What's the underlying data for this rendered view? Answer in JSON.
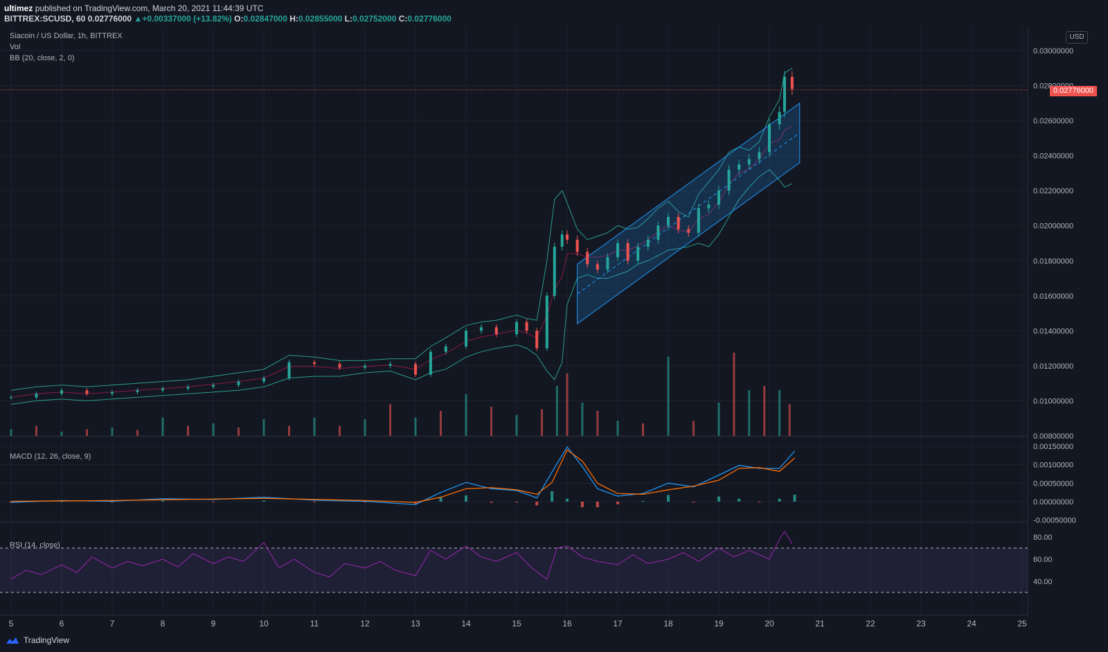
{
  "header": {
    "publisher": "ultimez",
    "published_text": "published on TradingView.com, March 20, 2021 11:44:39 UTC",
    "symbol": "BITTREX:SCUSD, 60",
    "last": "0.02776000",
    "change_arrow": "▲",
    "change": "+0.00337000 (+13.82%)",
    "o_label": "O:",
    "o": "0.02847000",
    "h_label": "H:",
    "h": "0.02855000",
    "l_label": "L:",
    "l": "0.02752000",
    "c_label": "C:",
    "c": "0.02776000"
  },
  "legend": {
    "title": "Siacoin / US Dollar, 1h, BITTREX",
    "vol": "Vol",
    "bb": "BB (20, close, 2, 0)",
    "macd": "MACD (12, 26, close, 9)",
    "rsi": "RSI (14, close)"
  },
  "currency_badge": "USD",
  "last_price_tag": "0.02776000",
  "footer": {
    "brand": "TradingView"
  },
  "colors": {
    "up": "#26a69a",
    "down": "#ef5350",
    "macd": "#2196f3",
    "signal": "#ff6d00",
    "rsi": "#9c27b0",
    "channel": "#2196f3",
    "bb": "#2a9d8f",
    "bg": "#131722"
  },
  "chart_data": [
    {
      "type": "candlestick",
      "title": "Siacoin / US Dollar, 1h, BITTREX",
      "x_ticks": [
        "5",
        "6",
        "7",
        "8",
        "9",
        "10",
        "11",
        "12",
        "13",
        "14",
        "15",
        "16",
        "17",
        "18",
        "19",
        "20",
        "21",
        "22",
        "23",
        "24",
        "25"
      ],
      "y_ticks": [
        "0.03000000",
        "0.02800000",
        "0.02600000",
        "0.02400000",
        "0.02200000",
        "0.02000000",
        "0.01800000",
        "0.01600000",
        "0.01400000",
        "0.01200000",
        "0.01000000",
        "0.00800000"
      ],
      "ylim": [
        0.008,
        0.03
      ],
      "x": [
        5.0,
        5.5,
        6.0,
        6.5,
        7.0,
        7.5,
        8.0,
        8.5,
        9.0,
        9.5,
        10.0,
        10.5,
        11.0,
        11.5,
        12.0,
        12.5,
        13.0,
        13.3,
        13.6,
        14.0,
        14.3,
        14.6,
        15.0,
        15.2,
        15.4,
        15.6,
        15.75,
        15.9,
        16.0,
        16.2,
        16.4,
        16.6,
        16.8,
        17.0,
        17.2,
        17.4,
        17.6,
        17.8,
        18.0,
        18.2,
        18.4,
        18.6,
        18.8,
        19.0,
        19.2,
        19.4,
        19.6,
        19.8,
        20.0,
        20.2,
        20.3,
        20.45
      ],
      "close": [
        0.0102,
        0.0104,
        0.0106,
        0.0104,
        0.0105,
        0.0106,
        0.0107,
        0.0108,
        0.0109,
        0.0111,
        0.0113,
        0.0122,
        0.0121,
        0.0119,
        0.012,
        0.0121,
        0.0115,
        0.0128,
        0.0131,
        0.014,
        0.0142,
        0.0138,
        0.0145,
        0.014,
        0.013,
        0.016,
        0.0188,
        0.0195,
        0.0192,
        0.0185,
        0.0178,
        0.0175,
        0.0182,
        0.019,
        0.018,
        0.0188,
        0.0192,
        0.02,
        0.0205,
        0.0198,
        0.0196,
        0.021,
        0.0212,
        0.022,
        0.0232,
        0.0235,
        0.0238,
        0.0242,
        0.0258,
        0.0265,
        0.0285,
        0.0278
      ],
      "bb_upper": [
        0.0106,
        0.0108,
        0.0109,
        0.0108,
        0.0109,
        0.011,
        0.0111,
        0.0112,
        0.0114,
        0.0116,
        0.0118,
        0.0126,
        0.0125,
        0.0123,
        0.0123,
        0.0124,
        0.0124,
        0.0131,
        0.0136,
        0.0143,
        0.0145,
        0.0146,
        0.0149,
        0.0147,
        0.0146,
        0.018,
        0.0215,
        0.022,
        0.0213,
        0.0198,
        0.0192,
        0.0194,
        0.0196,
        0.02,
        0.0198,
        0.0199,
        0.0204,
        0.021,
        0.0214,
        0.0208,
        0.0205,
        0.0218,
        0.0225,
        0.0232,
        0.0242,
        0.0245,
        0.0243,
        0.0248,
        0.0262,
        0.0272,
        0.0287,
        0.029
      ],
      "bb_lower": [
        0.0098,
        0.01,
        0.0101,
        0.01,
        0.0101,
        0.0102,
        0.0103,
        0.0104,
        0.0105,
        0.0106,
        0.0108,
        0.0113,
        0.0114,
        0.0114,
        0.0116,
        0.0117,
        0.0112,
        0.0116,
        0.0118,
        0.0125,
        0.0128,
        0.013,
        0.0132,
        0.013,
        0.0126,
        0.0117,
        0.0112,
        0.0122,
        0.0155,
        0.017,
        0.0172,
        0.017,
        0.017,
        0.0172,
        0.0174,
        0.0178,
        0.018,
        0.0183,
        0.0186,
        0.0187,
        0.0188,
        0.019,
        0.0188,
        0.0195,
        0.0205,
        0.0215,
        0.0222,
        0.0228,
        0.0232,
        0.0226,
        0.0222,
        0.0224
      ],
      "channel": {
        "start": {
          "x": 16.2,
          "upper": 0.0178,
          "lower": 0.0144
        },
        "end": {
          "x": 20.6,
          "upper": 0.027,
          "lower": 0.0236
        }
      },
      "last_price": 0.02776
    },
    {
      "type": "bar",
      "title": "Vol",
      "x": [
        5.0,
        5.5,
        6.0,
        6.5,
        7.0,
        7.5,
        8.0,
        8.5,
        9.0,
        9.5,
        10.0,
        10.5,
        11.0,
        11.5,
        12.0,
        12.5,
        13.0,
        13.5,
        14.0,
        14.5,
        15.0,
        15.5,
        15.8,
        16.0,
        16.3,
        16.6,
        17.0,
        17.5,
        18.0,
        18.5,
        19.0,
        19.3,
        19.6,
        19.9,
        20.2,
        20.4
      ],
      "values": [
        0.08,
        0.12,
        0.05,
        0.08,
        0.1,
        0.07,
        0.22,
        0.12,
        0.15,
        0.1,
        0.2,
        0.12,
        0.22,
        0.12,
        0.2,
        0.38,
        0.22,
        0.3,
        0.5,
        0.35,
        0.25,
        0.32,
        0.6,
        0.75,
        0.4,
        0.3,
        0.18,
        0.15,
        0.95,
        0.18,
        0.4,
        1.0,
        0.55,
        0.6,
        0.55,
        0.38
      ]
    },
    {
      "type": "line",
      "title": "MACD (12, 26, close, 9)",
      "y_ticks": [
        "0.00150000",
        "0.00100000",
        "0.00050000",
        "0.00000000",
        "-0.00050000"
      ],
      "ylim": [
        -0.0005,
        0.0015
      ],
      "x": [
        5.0,
        6.0,
        7.0,
        8.0,
        9.0,
        10.0,
        11.0,
        12.0,
        13.0,
        13.5,
        14.0,
        14.5,
        15.0,
        15.4,
        15.7,
        16.0,
        16.3,
        16.6,
        17.0,
        17.5,
        18.0,
        18.5,
        19.0,
        19.4,
        19.8,
        20.2,
        20.5
      ],
      "macd": [
        -2e-05,
        3e-05,
        1e-05,
        8e-05,
        6e-05,
        0.00012,
        4e-05,
        1e-05,
        -8e-05,
        0.00025,
        0.00052,
        0.00035,
        0.0003,
        0.0001,
        0.0008,
        0.00148,
        0.00095,
        0.00035,
        0.00015,
        0.00022,
        0.0005,
        0.0004,
        0.00072,
        0.00098,
        0.0009,
        0.0009,
        0.00137
      ],
      "signal": [
        1e-05,
        2e-05,
        3e-05,
        5e-05,
        7e-05,
        9e-05,
        6e-05,
        3e-05,
        -2e-05,
        0.00012,
        0.00035,
        0.00038,
        0.00032,
        0.0002,
        0.00052,
        0.0014,
        0.0011,
        0.0005,
        0.00022,
        0.0002,
        0.00032,
        0.00042,
        0.00058,
        0.0009,
        0.00092,
        0.00082,
        0.00118
      ],
      "histogram": [
        -3e-05,
        1e-05,
        -2e-05,
        3e-05,
        -1e-05,
        3e-05,
        -2e-05,
        -2e-05,
        -6e-05,
        0.00013,
        0.00017,
        -3e-05,
        -2e-05,
        -0.0001,
        0.00028,
        8e-05,
        -0.00015,
        -0.00015,
        -7e-05,
        2e-05,
        0.00018,
        -2e-05,
        0.00014,
        8e-05,
        -2e-05,
        8e-05,
        0.00019
      ]
    },
    {
      "type": "line",
      "title": "RSI (14, close)",
      "y_ticks": [
        "80.00",
        "60.00",
        "40.00"
      ],
      "ylim": [
        22,
        92
      ],
      "bands": [
        30,
        70
      ],
      "x": [
        5.0,
        5.3,
        5.6,
        6.0,
        6.3,
        6.6,
        7.0,
        7.3,
        7.6,
        8.0,
        8.3,
        8.6,
        9.0,
        9.3,
        9.6,
        10.0,
        10.3,
        10.6,
        11.0,
        11.3,
        11.6,
        12.0,
        12.3,
        12.6,
        13.0,
        13.3,
        13.6,
        14.0,
        14.3,
        14.6,
        15.0,
        15.3,
        15.6,
        15.8,
        16.0,
        16.3,
        16.6,
        17.0,
        17.3,
        17.6,
        18.0,
        18.3,
        18.6,
        19.0,
        19.3,
        19.6,
        20.0,
        20.2,
        20.3,
        20.45
      ],
      "values": [
        42,
        50,
        46,
        55,
        48,
        62,
        52,
        58,
        54,
        60,
        53,
        65,
        56,
        62,
        58,
        75,
        52,
        60,
        48,
        44,
        56,
        52,
        58,
        50,
        45,
        68,
        60,
        72,
        62,
        58,
        66,
        52,
        42,
        70,
        72,
        62,
        58,
        55,
        64,
        56,
        60,
        66,
        58,
        70,
        62,
        68,
        60,
        78,
        85,
        74
      ]
    }
  ],
  "y_labels_main": [
    "0.03000000",
    "0.02800000",
    "0.02600000",
    "0.02400000",
    "0.02200000",
    "0.02000000",
    "0.01800000",
    "0.01600000",
    "0.01400000",
    "0.01200000",
    "0.01000000",
    "0.00800000"
  ]
}
